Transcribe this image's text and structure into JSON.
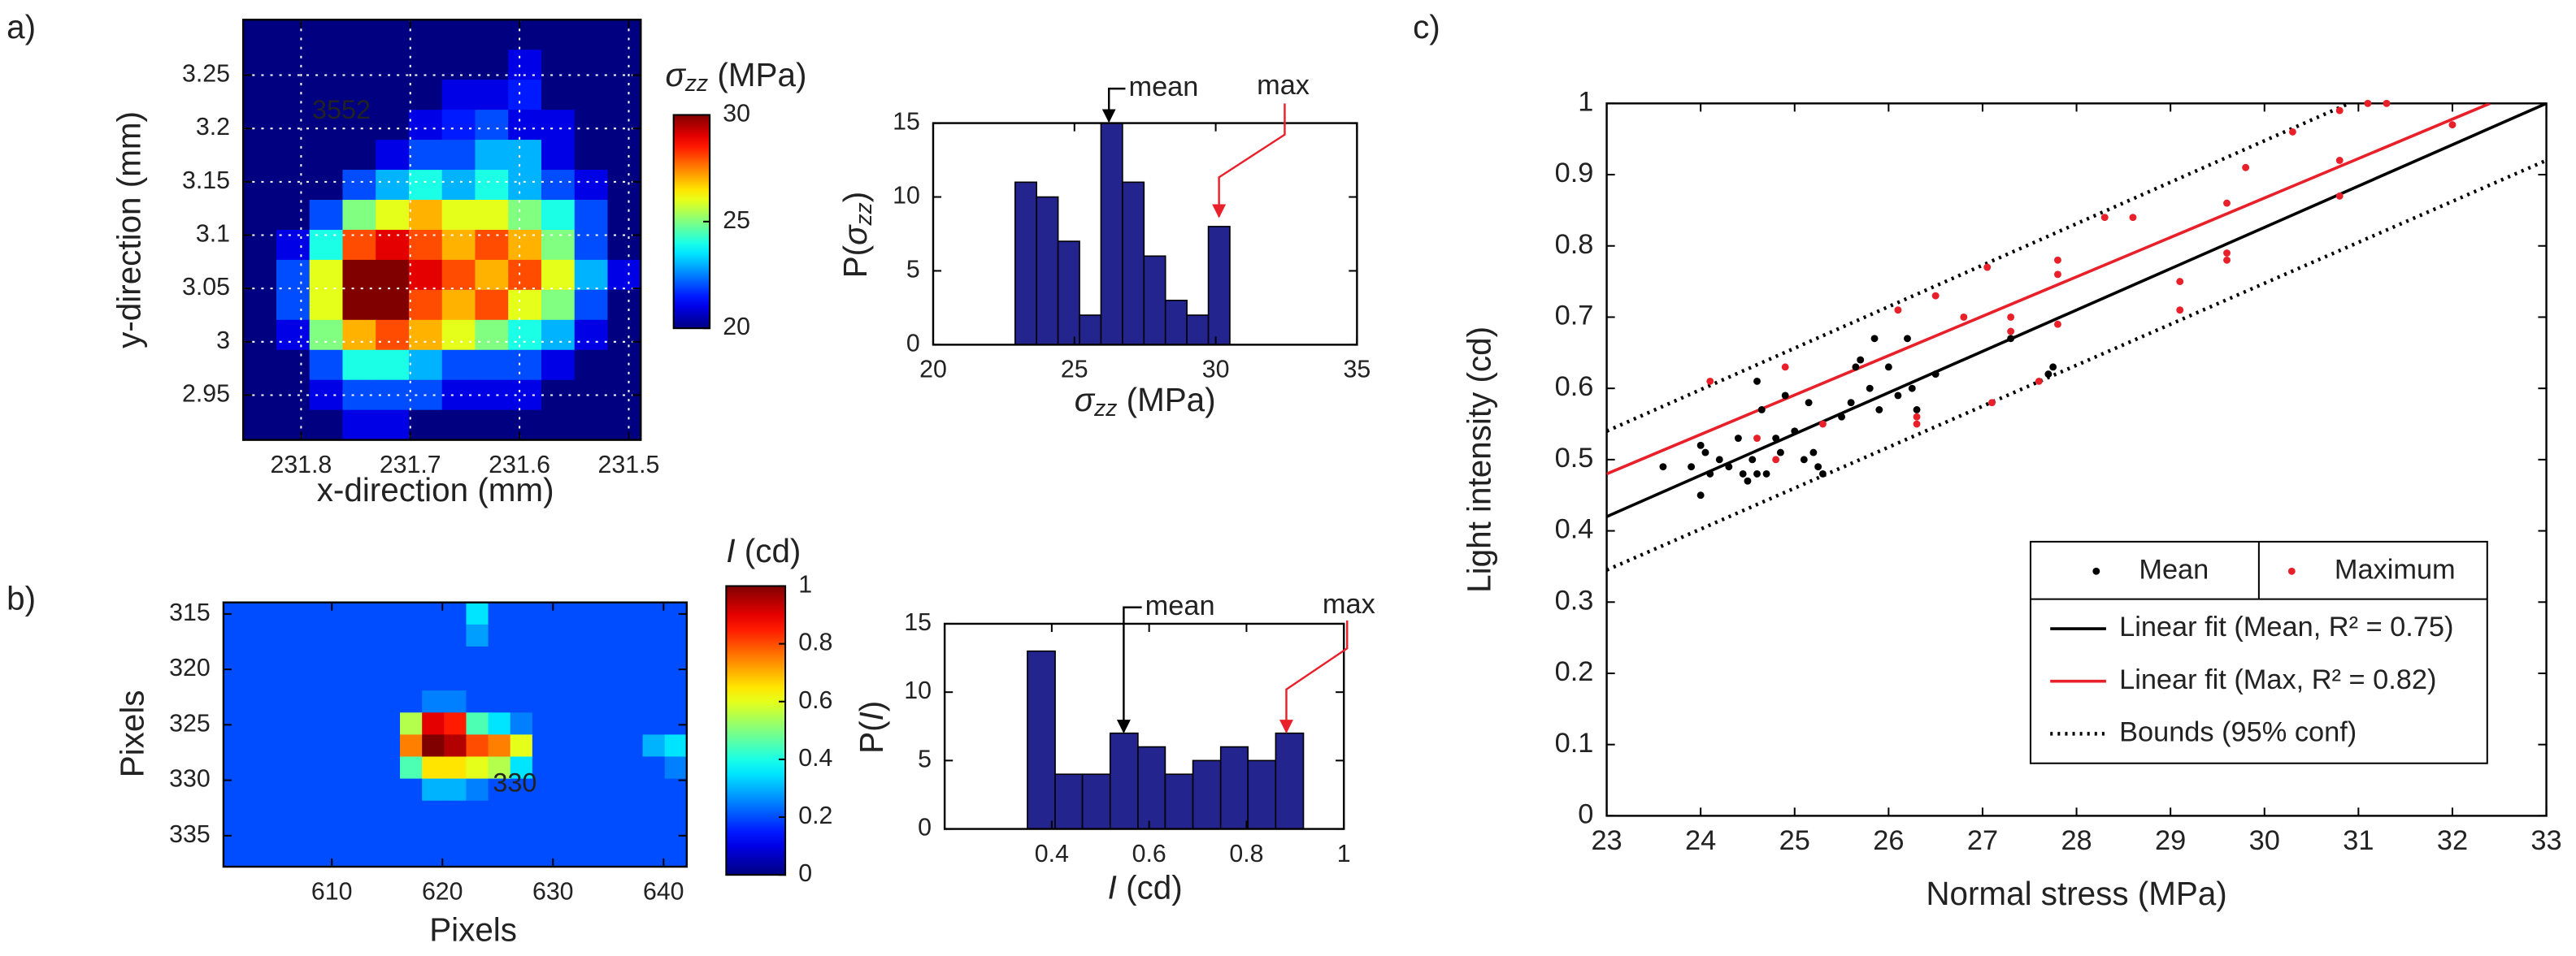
{
  "panel_labels": [
    "a)",
    "b)",
    "c)"
  ],
  "chart_data": [
    {
      "type": "heatmap",
      "xlabel": "x-direction (mm)",
      "ylabel": "y-direction (mm)",
      "xlim": [
        231.853,
        231.489
      ],
      "ylim": [
        2.908,
        3.302
      ],
      "xticks": [
        231.8,
        231.7,
        231.6,
        231.5
      ],
      "yticks": [
        2.95,
        3,
        3.05,
        3.1,
        3.15,
        3.2,
        3.25
      ],
      "grid": true,
      "colormap": "jet",
      "colorbar": {
        "label": [
          "σ",
          "zz",
          " (MPa)"
        ],
        "lim": [
          20,
          30
        ],
        "ticks": [
          20,
          25,
          30
        ]
      },
      "annotations": [
        "3552"
      ],
      "values": [
        [
          20,
          20,
          20,
          20,
          20,
          20,
          20,
          20,
          20,
          20,
          20,
          20
        ],
        [
          20,
          20,
          20,
          20,
          20,
          20,
          20,
          20,
          21,
          20,
          20,
          20
        ],
        [
          20,
          20,
          20,
          20,
          20,
          20,
          21,
          21,
          21.5,
          20,
          20,
          20
        ],
        [
          20,
          20,
          20,
          20,
          20,
          21,
          21.5,
          22,
          21,
          21,
          20,
          20
        ],
        [
          20,
          20,
          20,
          20,
          21,
          22,
          22,
          23,
          23,
          21,
          20,
          20
        ],
        [
          20,
          20,
          20,
          22,
          23,
          24,
          23,
          24,
          23,
          22,
          21,
          20
        ],
        [
          20,
          20,
          22,
          25,
          26,
          27,
          26,
          26,
          25,
          24,
          22,
          20
        ],
        [
          20,
          21,
          24,
          28,
          29,
          28,
          27,
          28,
          27,
          25,
          22,
          20
        ],
        [
          20,
          22,
          26,
          30,
          30,
          29,
          28,
          27,
          28,
          26,
          23,
          21
        ],
        [
          20,
          22,
          26,
          30,
          30,
          28,
          27,
          28,
          26,
          25,
          22,
          20
        ],
        [
          20,
          21,
          25,
          27,
          28,
          27,
          26,
          25,
          24,
          23,
          21,
          20
        ],
        [
          20,
          20,
          22,
          24,
          24,
          23,
          22,
          22,
          22,
          21,
          20,
          20
        ],
        [
          20,
          20,
          21,
          22,
          22,
          22,
          21,
          21,
          21,
          20,
          20,
          20
        ],
        [
          20,
          20,
          20,
          21,
          21,
          20,
          20,
          20,
          20,
          20,
          20,
          20
        ]
      ]
    },
    {
      "type": "histogram",
      "xlabel": [
        "σ",
        "zz",
        " (MPa)"
      ],
      "ylabel": [
        "P(",
        "σ",
        "zz",
        ")"
      ],
      "bins": [
        22.9,
        23.66,
        24.42,
        25.18,
        25.94,
        26.7,
        27.46,
        28.22,
        28.98,
        29.74,
        30.5
      ],
      "counts": [
        11,
        10,
        7,
        2,
        15,
        11,
        6,
        3,
        2,
        8
      ],
      "color": "#24248f",
      "xlim": [
        20,
        35
      ],
      "xticks": [
        20,
        25,
        30,
        35
      ],
      "ylim": [
        0,
        15
      ],
      "yticks": [
        0,
        5,
        10,
        15
      ],
      "annotations": [
        "mean",
        "max"
      ]
    },
    {
      "type": "heatmap",
      "xlabel": "Pixels",
      "ylabel": "Pixels",
      "xlim": [
        600.2,
        642.1
      ],
      "ylim": [
        337.8,
        313.96
      ],
      "xticks": [
        610,
        620,
        630,
        640
      ],
      "yticks": [
        315,
        320,
        325,
        330,
        335
      ],
      "grid": false,
      "colormap": "jet",
      "colorbar": {
        "label": [
          "I",
          " (cd)"
        ],
        "lim": [
          0,
          1
        ],
        "ticks": [
          0,
          0.2,
          0.4,
          0.6,
          0.8,
          1
        ]
      },
      "annotations": [
        "330"
      ],
      "values": [
        [
          0.2,
          0.2,
          0.2,
          0.2,
          0.2,
          0.2,
          0.2,
          0.2,
          0.2,
          0.2,
          0.2,
          0.35,
          0.2,
          0.2,
          0.2,
          0.2,
          0.2,
          0.2,
          0.2,
          0.2,
          0.2
        ],
        [
          0.2,
          0.2,
          0.2,
          0.2,
          0.2,
          0.2,
          0.2,
          0.2,
          0.2,
          0.2,
          0.2,
          0.28,
          0.2,
          0.2,
          0.2,
          0.2,
          0.2,
          0.2,
          0.2,
          0.2,
          0.2
        ],
        [
          0.2,
          0.2,
          0.2,
          0.2,
          0.2,
          0.2,
          0.2,
          0.2,
          0.2,
          0.2,
          0.2,
          0.2,
          0.2,
          0.2,
          0.2,
          0.2,
          0.2,
          0.2,
          0.2,
          0.2,
          0.2
        ],
        [
          0.2,
          0.2,
          0.2,
          0.2,
          0.2,
          0.2,
          0.2,
          0.2,
          0.2,
          0.2,
          0.2,
          0.2,
          0.2,
          0.2,
          0.2,
          0.2,
          0.2,
          0.2,
          0.2,
          0.2,
          0.2
        ],
        [
          0.2,
          0.2,
          0.2,
          0.2,
          0.2,
          0.2,
          0.2,
          0.2,
          0.2,
          0.25,
          0.25,
          0.2,
          0.2,
          0.2,
          0.2,
          0.2,
          0.2,
          0.2,
          0.2,
          0.2,
          0.2
        ],
        [
          0.2,
          0.2,
          0.2,
          0.2,
          0.2,
          0.2,
          0.2,
          0.2,
          0.55,
          0.9,
          0.85,
          0.45,
          0.35,
          0.25,
          0.2,
          0.2,
          0.2,
          0.2,
          0.2,
          0.2,
          0.2
        ],
        [
          0.2,
          0.2,
          0.2,
          0.2,
          0.2,
          0.2,
          0.2,
          0.2,
          0.75,
          1,
          0.95,
          0.8,
          0.75,
          0.6,
          0.2,
          0.2,
          0.2,
          0.2,
          0.2,
          0.3,
          0.35
        ],
        [
          0.2,
          0.2,
          0.2,
          0.2,
          0.2,
          0.2,
          0.2,
          0.2,
          0.45,
          0.65,
          0.65,
          0.6,
          0.55,
          0.35,
          0.2,
          0.2,
          0.2,
          0.2,
          0.2,
          0.2,
          0.25
        ],
        [
          0.2,
          0.2,
          0.2,
          0.2,
          0.2,
          0.2,
          0.2,
          0.2,
          0.2,
          0.3,
          0.3,
          0.25,
          0.2,
          0.2,
          0.2,
          0.2,
          0.2,
          0.2,
          0.2,
          0.2,
          0.2
        ],
        [
          0.2,
          0.2,
          0.2,
          0.2,
          0.2,
          0.2,
          0.2,
          0.2,
          0.2,
          0.2,
          0.2,
          0.2,
          0.2,
          0.2,
          0.2,
          0.2,
          0.2,
          0.2,
          0.2,
          0.2,
          0.2
        ],
        [
          0.2,
          0.2,
          0.2,
          0.2,
          0.2,
          0.2,
          0.2,
          0.2,
          0.2,
          0.2,
          0.2,
          0.2,
          0.2,
          0.2,
          0.2,
          0.2,
          0.2,
          0.2,
          0.2,
          0.2,
          0.2
        ],
        [
          0.2,
          0.2,
          0.2,
          0.2,
          0.2,
          0.2,
          0.2,
          0.2,
          0.2,
          0.2,
          0.2,
          0.2,
          0.2,
          0.2,
          0.2,
          0.2,
          0.2,
          0.2,
          0.2,
          0.2,
          0.2
        ]
      ]
    },
    {
      "type": "histogram",
      "xlabel": [
        "I",
        " (cd)"
      ],
      "ylabel": [
        "P(",
        "I",
        ")"
      ],
      "bins": [
        0.35,
        0.407,
        0.463,
        0.52,
        0.577,
        0.633,
        0.69,
        0.747,
        0.803,
        0.86,
        0.917
      ],
      "counts": [
        13,
        4,
        4,
        7,
        6,
        4,
        5,
        6,
        5,
        7
      ],
      "color": "#24248f",
      "xlim": [
        0.18,
        1
      ],
      "xticks": [
        0.4,
        0.6,
        0.8,
        1
      ],
      "ylim": [
        0,
        15
      ],
      "yticks": [
        0,
        5,
        10,
        15
      ],
      "annotations": [
        "mean",
        "max"
      ]
    },
    {
      "type": "scatter",
      "xlabel": "Normal stress (MPa)",
      "ylabel": "Light intensity (cd)",
      "xlim": [
        23,
        33
      ],
      "xticks": [
        23,
        24,
        25,
        26,
        27,
        28,
        29,
        30,
        31,
        32,
        33
      ],
      "ylim": [
        0,
        1
      ],
      "yticks": [
        0,
        0.1,
        0.2,
        0.3,
        0.4,
        0.5,
        0.6,
        0.7,
        0.8,
        0.9,
        1
      ],
      "series": [
        {
          "name": "Mean",
          "color": "#000000",
          "mode": "markers",
          "x": [
            23.6,
            23.9,
            24.0,
            24.0,
            24.05,
            24.1,
            24.2,
            24.3,
            24.4,
            24.45,
            24.5,
            24.55,
            24.6,
            24.6,
            24.65,
            24.7,
            24.8,
            24.85,
            24.9,
            25.0,
            25.1,
            25.15,
            25.2,
            25.25,
            25.3,
            25.5,
            25.6,
            25.65,
            25.7,
            25.8,
            25.85,
            25.9,
            26.0,
            26.1,
            26.2,
            26.25,
            26.3,
            26.5,
            27.3,
            27.7,
            27.75
          ],
          "values": [
            0.49,
            0.49,
            0.45,
            0.52,
            0.51,
            0.48,
            0.5,
            0.49,
            0.53,
            0.48,
            0.47,
            0.5,
            0.48,
            0.61,
            0.57,
            0.48,
            0.53,
            0.51,
            0.59,
            0.54,
            0.5,
            0.58,
            0.51,
            0.49,
            0.48,
            0.56,
            0.58,
            0.63,
            0.64,
            0.6,
            0.67,
            0.57,
            0.63,
            0.59,
            0.67,
            0.6,
            0.57,
            0.62,
            0.67,
            0.62,
            0.63
          ]
        },
        {
          "name": "Maximum",
          "color": "#e8202a",
          "mode": "markers",
          "x": [
            24.1,
            24.6,
            24.8,
            24.9,
            25.3,
            26.1,
            26.3,
            26.3,
            26.5,
            26.8,
            27.05,
            27.1,
            27.3,
            27.3,
            27.6,
            27.8,
            27.8,
            27.8,
            28.3,
            28.6,
            29.1,
            29.1,
            29.6,
            29.6,
            29.6,
            29.8,
            30.3,
            30.8,
            30.8,
            30.8,
            31.1,
            31.3,
            32.0
          ],
          "values": [
            0.61,
            0.53,
            0.5,
            0.63,
            0.55,
            0.71,
            0.56,
            0.55,
            0.73,
            0.7,
            0.77,
            0.58,
            0.7,
            0.68,
            0.61,
            0.78,
            0.76,
            0.69,
            0.84,
            0.84,
            0.75,
            0.71,
            0.86,
            0.79,
            0.78,
            0.91,
            0.96,
            0.99,
            0.92,
            0.87,
            1.0,
            1.0,
            0.97
          ]
        },
        {
          "name": "Linear fit (Mean, R² = 0.75)",
          "color": "#000000",
          "mode": "line",
          "dash": "solid",
          "x": [
            23,
            33
          ],
          "values": [
            0.42,
            1.0
          ]
        },
        {
          "name": "Linear fit (Max, R² = 0.82)",
          "color": "#e8202a",
          "mode": "line",
          "dash": "solid",
          "x": [
            23,
            32.4
          ],
          "values": [
            0.48,
            1.0
          ]
        },
        {
          "name": "Bounds (95% conf)",
          "color": "#000000",
          "mode": "line",
          "dash": "dotted",
          "x": [
            23,
            30.9,
            null,
            23,
            33
          ],
          "values": [
            0.54,
            1.0,
            null,
            0.345,
            0.92
          ]
        }
      ]
    }
  ]
}
